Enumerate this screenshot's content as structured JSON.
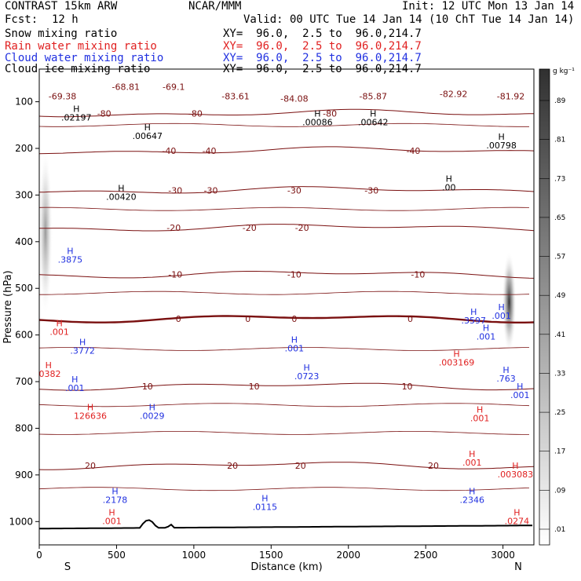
{
  "header": {
    "model": "CONTRAST 15km ARW",
    "org": "NCAR/MMM",
    "init": "Init: 12 UTC Mon 13 Jan 14",
    "fcst_label": "Fcst:",
    "fcst_value": "12 h",
    "valid": "Valid: 00 UTC Tue 14 Jan 14 (10 ChT Tue 14 Jan 14)",
    "fields": [
      {
        "name": "Snow mixing ratio",
        "xy": "XY=  96.0,  2.5 to  96.0,214.7",
        "color": "#000000"
      },
      {
        "name": "Rain water mixing ratio",
        "xy": "XY=  96.0,  2.5 to  96.0,214.7",
        "color": "#e02020"
      },
      {
        "name": "Cloud water mixing ratio",
        "xy": "XY=  96.0,  2.5 to  96.0,214.7",
        "color": "#2030e0"
      },
      {
        "name": "Cloud ice mixing ratio",
        "xy": "XY=  96.0,  2.5 to  96.0,214.7",
        "color": "#000000"
      }
    ]
  },
  "chart_data": {
    "type": "heatmap",
    "xlabel": "Distance (km)",
    "ylabel": "Pressure (hPa)",
    "xlim": [
      0,
      3200
    ],
    "ylim": [
      1050,
      30
    ],
    "xticks": [
      0,
      500,
      1000,
      1500,
      2000,
      2500,
      3000
    ],
    "yticks": [
      100,
      200,
      300,
      400,
      500,
      600,
      700,
      800,
      900,
      1000
    ],
    "end_labels": {
      "left": "S",
      "right": "N"
    },
    "colorbar": {
      "unit": "g kg⁻¹",
      "ticks": [
        ".01",
        ".09",
        ".17",
        ".25",
        ".33",
        ".41",
        ".49",
        ".57",
        ".65",
        ".73",
        ".81",
        ".89"
      ],
      "values": [
        0.01,
        0.09,
        0.17,
        0.25,
        0.33,
        0.41,
        0.49,
        0.57,
        0.65,
        0.73,
        0.81,
        0.89
      ]
    },
    "temperature_contours": [
      {
        "value": -80,
        "p": 125,
        "labels": [
          {
            "x": 420,
            "t": "-80"
          },
          {
            "x": 1010,
            "t": "-80"
          },
          {
            "x": 1880,
            "t": "-80"
          }
        ]
      },
      {
        "value": -40,
        "p": 205,
        "labels": [
          {
            "x": 840,
            "t": "-40"
          },
          {
            "x": 1100,
            "t": "-40"
          },
          {
            "x": 2420,
            "t": "-40"
          }
        ]
      },
      {
        "value": -30,
        "p": 290,
        "labels": [
          {
            "x": 880,
            "t": "-30"
          },
          {
            "x": 1110,
            "t": "-30"
          },
          {
            "x": 1650,
            "t": "-30"
          },
          {
            "x": 2150,
            "t": "-30"
          }
        ]
      },
      {
        "value": -20,
        "p": 370,
        "labels": [
          {
            "x": 870,
            "t": "-20"
          },
          {
            "x": 1360,
            "t": "-20"
          },
          {
            "x": 1700,
            "t": "-20"
          }
        ]
      },
      {
        "value": -10,
        "p": 470,
        "labels": [
          {
            "x": 880,
            "t": "-10"
          },
          {
            "x": 1650,
            "t": "-10"
          },
          {
            "x": 2450,
            "t": "-10"
          }
        ]
      },
      {
        "value": 0,
        "p": 565,
        "bold": true,
        "labels": [
          {
            "x": 900,
            "t": "0"
          },
          {
            "x": 1350,
            "t": "0"
          },
          {
            "x": 1650,
            "t": "0"
          },
          {
            "x": 2400,
            "t": "0"
          }
        ]
      },
      {
        "value": 10,
        "p": 710,
        "labels": [
          {
            "x": 700,
            "t": "10"
          },
          {
            "x": 1390,
            "t": "10"
          },
          {
            "x": 2380,
            "t": "10"
          }
        ]
      },
      {
        "value": 20,
        "p": 880,
        "labels": [
          {
            "x": 330,
            "t": "20"
          },
          {
            "x": 1250,
            "t": "20"
          },
          {
            "x": 1690,
            "t": "20"
          },
          {
            "x": 2550,
            "t": "20"
          }
        ]
      }
    ],
    "temperature_labels_top": [
      {
        "x": 150,
        "p": 95,
        "t": "-69.38"
      },
      {
        "x": 560,
        "p": 75,
        "t": "-68.81"
      },
      {
        "x": 870,
        "p": 75,
        "t": "-69.1"
      },
      {
        "x": 1270,
        "p": 95,
        "t": "-83.61"
      },
      {
        "x": 1650,
        "p": 100,
        "t": "-84.08"
      },
      {
        "x": 2160,
        "p": 95,
        "t": "-85.87"
      },
      {
        "x": 2680,
        "p": 90,
        "t": "-82.92"
      },
      {
        "x": 3050,
        "p": 95,
        "t": "-81.92"
      }
    ],
    "max_labels": [
      {
        "x": 240,
        "p": 140,
        "t": ".02197",
        "color": "#000000"
      },
      {
        "x": 700,
        "p": 180,
        "t": ".00647",
        "color": "#000000"
      },
      {
        "x": 1800,
        "p": 150,
        "t": ".00086",
        "color": "#000000"
      },
      {
        "x": 2160,
        "p": 150,
        "t": ".00642",
        "color": "#000000"
      },
      {
        "x": 2990,
        "p": 200,
        "t": ".00798",
        "color": "#000000"
      },
      {
        "x": 530,
        "p": 310,
        "t": ".00420",
        "color": "#000000"
      },
      {
        "x": 2650,
        "p": 290,
        "t": ".00",
        "color": "#000000"
      },
      {
        "x": 200,
        "p": 445,
        "t": ".3875",
        "color": "#2030e0"
      },
      {
        "x": 280,
        "p": 640,
        "t": ".3772",
        "color": "#2030e0"
      },
      {
        "x": 230,
        "p": 720,
        "t": ".001",
        "color": "#2030e0"
      },
      {
        "x": 1650,
        "p": 635,
        "t": ".001",
        "color": "#2030e0"
      },
      {
        "x": 1730,
        "p": 695,
        "t": ".0723",
        "color": "#2030e0"
      },
      {
        "x": 730,
        "p": 780,
        "t": ".0029",
        "color": "#2030e0"
      },
      {
        "x": 490,
        "p": 960,
        "t": ".2178",
        "color": "#2030e0"
      },
      {
        "x": 1460,
        "p": 975,
        "t": ".0115",
        "color": "#2030e0"
      },
      {
        "x": 2800,
        "p": 960,
        "t": ".2346",
        "color": "#2030e0"
      },
      {
        "x": 2810,
        "p": 575,
        "t": ".3597",
        "color": "#2030e0"
      },
      {
        "x": 2990,
        "p": 565,
        "t": ".001",
        "color": "#2030e0"
      },
      {
        "x": 2890,
        "p": 610,
        "t": ".001",
        "color": "#2030e0"
      },
      {
        "x": 3020,
        "p": 700,
        "t": ".763",
        "color": "#2030e0"
      },
      {
        "x": 3110,
        "p": 735,
        "t": ".001",
        "color": "#2030e0"
      },
      {
        "x": 130,
        "p": 600,
        "t": ".001",
        "color": "#e02020"
      },
      {
        "x": 60,
        "p": 690,
        "t": ".0382",
        "color": "#e02020"
      },
      {
        "x": 330,
        "p": 780,
        "t": "126636",
        "color": "#e02020"
      },
      {
        "x": 2700,
        "p": 665,
        "t": ".003169",
        "color": "#e02020"
      },
      {
        "x": 2850,
        "p": 785,
        "t": ".001",
        "color": "#e02020"
      },
      {
        "x": 2800,
        "p": 880,
        "t": ".001",
        "color": "#e02020"
      },
      {
        "x": 3080,
        "p": 905,
        "t": ".003083",
        "color": "#e02020"
      },
      {
        "x": 3090,
        "p": 1005,
        "t": ".0274",
        "color": "#e02020"
      },
      {
        "x": 470,
        "p": 1005,
        "t": ".001",
        "color": "#e02020"
      }
    ],
    "grayscale_regions": [
      {
        "x": 40,
        "p_top": 200,
        "p_bottom": 560,
        "level": 0.45
      },
      {
        "x": 3040,
        "p_top": 420,
        "p_bottom": 640,
        "level": 0.9
      }
    ],
    "surface_pressure": 1010
  }
}
